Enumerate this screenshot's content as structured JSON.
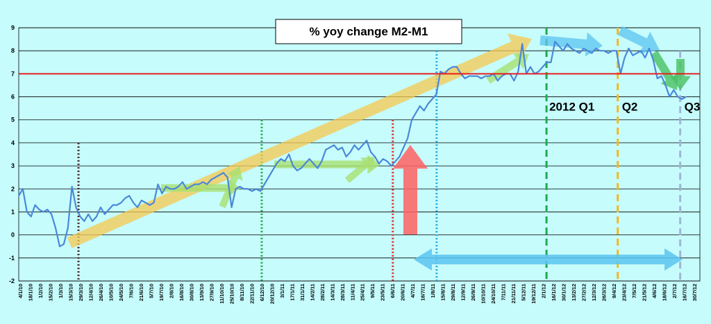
{
  "chart_data": {
    "type": "line",
    "title": "% yoy change M2-M1",
    "xlabel": "",
    "ylabel": "",
    "ylim": [
      -2,
      9
    ],
    "yticks": [
      -2,
      -1,
      0,
      1,
      2,
      3,
      4,
      5,
      6,
      7,
      8,
      9
    ],
    "grid": true,
    "legend": "none",
    "x_tick_labels": [
      "4/1/10",
      "18/1/10",
      "1/2/10",
      "15/2/10",
      "1/3/10",
      "15/3/10",
      "29/3/10",
      "12/4/10",
      "26/4/10",
      "10/5/10",
      "24/5/10",
      "7/6/10",
      "21/6/10",
      "5/7/10",
      "19/7/10",
      "2/8/10",
      "16/8/10",
      "30/8/10",
      "13/9/10",
      "27/9/10",
      "11/10/10",
      "25/10/10",
      "8/11/10",
      "22/11/10",
      "6/12/10",
      "20/12/10",
      "3/1/11",
      "17/1/11",
      "31/1/11",
      "14/2/11",
      "28/2/11",
      "14/3/11",
      "28/3/11",
      "11/4/11",
      "25/4/11",
      "9/5/11",
      "23/5/11",
      "6/6/11",
      "20/6/11",
      "4/7/11",
      "18/7/11",
      "1/8/11",
      "15/8/11",
      "29/8/11",
      "12/9/11",
      "26/9/11",
      "10/10/11",
      "24/10/11",
      "7/11/11",
      "21/11/11",
      "5/12/11",
      "19/12/11",
      "2/1/12",
      "16/1/12",
      "30/1/12",
      "13/2/12",
      "27/2/12",
      "12/3/12",
      "26/3/12",
      "9/4/12",
      "23/4/12",
      "7/5/12",
      "21/5/12",
      "4/6/12",
      "18/6/12",
      "2/7/12",
      "16/7/12",
      "30/7/12"
    ],
    "series": [
      {
        "values": [
          1.7,
          2.0,
          1.0,
          0.8,
          1.3,
          1.1,
          1.0,
          1.1,
          0.9,
          0.3,
          -0.5,
          -0.4,
          0.3,
          2.1,
          1.2,
          0.8,
          0.6,
          0.9,
          0.6,
          0.8,
          1.2,
          0.9,
          1.1,
          1.3,
          1.3,
          1.4,
          1.6,
          1.7,
          1.4,
          1.2,
          1.5,
          1.4,
          1.3,
          1.4,
          2.2,
          1.8,
          2.1,
          2.0,
          2.0,
          2.1,
          2.3,
          2.0,
          2.1,
          2.2,
          2.2,
          2.3,
          2.2,
          2.4,
          2.5,
          2.6,
          2.7,
          2.5,
          1.2,
          2.0,
          2.1,
          2.0,
          2.0,
          1.9,
          2.0,
          1.9,
          2.2,
          2.5,
          2.8,
          3.1,
          3.3,
          3.2,
          3.5,
          3.0,
          2.8,
          2.9,
          3.1,
          3.3,
          3.1,
          2.9,
          3.2,
          3.7,
          3.8,
          3.9,
          3.7,
          3.8,
          3.4,
          3.6,
          3.9,
          3.7,
          3.9,
          4.1,
          3.6,
          3.4,
          3.1,
          3.3,
          3.2,
          3.0,
          3.2,
          3.4,
          3.8,
          4.2,
          5.0,
          5.3,
          5.6,
          5.4,
          5.7,
          5.9,
          6.1,
          7.1,
          7.0,
          7.2,
          7.3,
          7.3,
          7.0,
          6.8,
          6.9,
          6.9,
          6.9,
          6.8,
          6.9,
          6.9,
          7.0,
          6.7,
          6.9,
          7.0,
          7.0,
          6.7,
          7.1,
          8.3,
          7.0,
          7.3,
          7.0,
          7.1,
          7.3,
          7.5,
          7.5,
          8.4,
          8.2,
          8.0,
          8.3,
          8.1,
          8.0,
          7.9,
          8.1,
          8.0,
          7.9,
          8.1,
          8.0,
          8.0,
          7.9,
          8.0,
          8.0,
          7.0,
          7.7,
          8.1,
          7.8,
          7.9,
          8.0,
          7.7,
          8.1,
          7.6,
          6.8,
          6.9,
          6.5,
          6.0,
          6.3,
          6.0,
          5.9,
          6.0
        ]
      }
    ],
    "markers": [
      {
        "label": "",
        "index_fraction": 0.0877,
        "color": "#4a1e1e",
        "ymin": -2,
        "ymax": 4
      },
      {
        "label": "",
        "index_fraction": 0.3567,
        "color": "#1e9e3e",
        "ymin": -2,
        "ymax": 5
      },
      {
        "label": "",
        "index_fraction": 0.5492,
        "color": "#e62020",
        "ymin": -2,
        "ymax": 5
      },
      {
        "label": "",
        "index_fraction": 0.6135,
        "color": "#1ea8e6",
        "ymin": -2,
        "ymax": 8
      },
      {
        "label": "2012 Q1",
        "index_fraction": 0.7748,
        "color": "#1eaa4e",
        "ymin": -2,
        "ymax": 9
      },
      {
        "label": "Q2",
        "index_fraction": 0.8794,
        "color": "#f5b81e",
        "ymin": -2,
        "ymax": 9
      },
      {
        "label": "Q3",
        "index_fraction": 0.9711,
        "color": "#a0b4d8",
        "ymin": -2,
        "ymax": 8
      }
    ],
    "reference_line": {
      "y": 7,
      "color": "#e62020"
    }
  }
}
